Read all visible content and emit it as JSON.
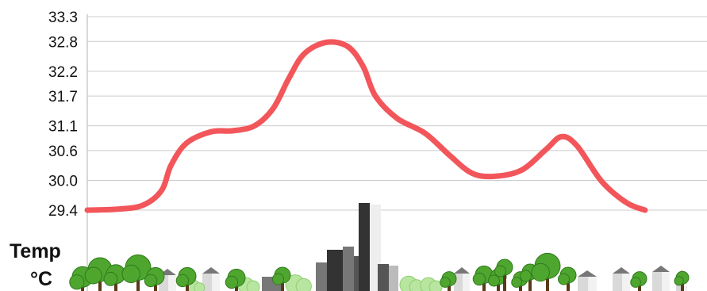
{
  "chart_data": {
    "type": "line",
    "title": "",
    "xlabel": "",
    "ylabel": "Temp",
    "yunit": "°C",
    "y_ticks": [
      "33.3",
      "32.8",
      "32.2",
      "31.7",
      "31.1",
      "30.6",
      "30.0",
      "29.4"
    ],
    "ylim": [
      29.4,
      33.3
    ],
    "grid": true,
    "legend": "none",
    "series": [
      {
        "color": "#f2565a",
        "points": [
          [
            0.0,
            29.4
          ],
          [
            0.05,
            29.42
          ],
          [
            0.09,
            29.5
          ],
          [
            0.12,
            29.8
          ],
          [
            0.135,
            30.3
          ],
          [
            0.16,
            30.75
          ],
          [
            0.2,
            30.98
          ],
          [
            0.235,
            31.0
          ],
          [
            0.27,
            31.1
          ],
          [
            0.3,
            31.45
          ],
          [
            0.325,
            32.05
          ],
          [
            0.35,
            32.55
          ],
          [
            0.385,
            32.78
          ],
          [
            0.42,
            32.7
          ],
          [
            0.445,
            32.3
          ],
          [
            0.465,
            31.7
          ],
          [
            0.5,
            31.25
          ],
          [
            0.545,
            30.95
          ],
          [
            0.585,
            30.5
          ],
          [
            0.62,
            30.15
          ],
          [
            0.655,
            30.08
          ],
          [
            0.7,
            30.2
          ],
          [
            0.74,
            30.62
          ],
          [
            0.765,
            30.88
          ],
          [
            0.79,
            30.7
          ],
          [
            0.83,
            29.98
          ],
          [
            0.87,
            29.55
          ],
          [
            0.9,
            29.4
          ]
        ]
      }
    ]
  },
  "colors": {
    "line": "#f2565a",
    "grid": "#cccccc",
    "tree_light": "#4ea62f",
    "tree_dark": "#2f7a1c",
    "trunk": "#5a3a1a",
    "bush": "#b8e6a0",
    "building_dark": "#333333",
    "building_mid": "#777777",
    "building_light": "#bbbbbb"
  }
}
